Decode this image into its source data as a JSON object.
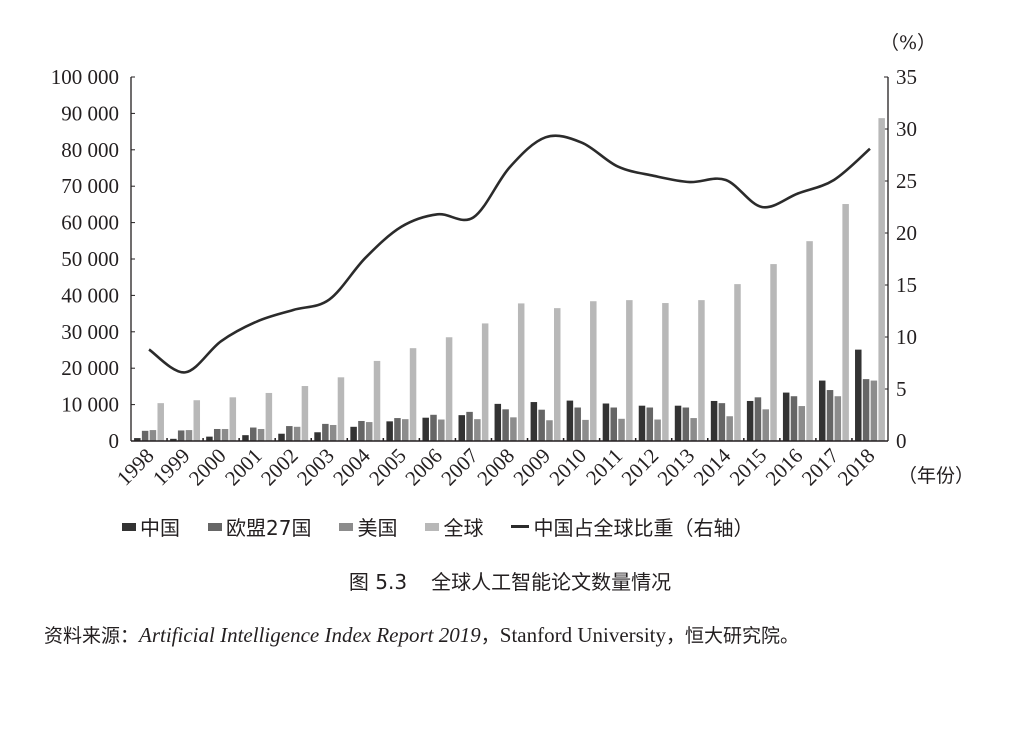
{
  "chart_data": {
    "type": "bar+line",
    "title": "图 5.3  全球人工智能论文数量情况",
    "categories": [
      "1998",
      "1999",
      "2000",
      "2001",
      "2002",
      "2003",
      "2004",
      "2005",
      "2006",
      "2007",
      "2008",
      "2009",
      "2010",
      "2011",
      "2012",
      "2013",
      "2014",
      "2015",
      "2016",
      "2017",
      "2018"
    ],
    "series": [
      {
        "name": "中国",
        "axis": "left",
        "type": "bar",
        "color": "#333333",
        "values": [
          800,
          600,
          1200,
          1600,
          2000,
          2400,
          3900,
          5400,
          6400,
          7100,
          10200,
          10700,
          11100,
          10300,
          9700,
          9700,
          11000,
          11000,
          13300,
          16600,
          25100
        ]
      },
      {
        "name": "欧盟27国",
        "axis": "left",
        "type": "bar",
        "color": "#666666",
        "values": [
          2800,
          2900,
          3300,
          3700,
          4100,
          4700,
          5500,
          6300,
          7200,
          8000,
          8700,
          8600,
          9200,
          9200,
          9200,
          9200,
          10400,
          12000,
          12300,
          14000,
          17000
        ]
      },
      {
        "name": "美国",
        "axis": "left",
        "type": "bar",
        "color": "#8c8c8c",
        "values": [
          3000,
          3000,
          3300,
          3300,
          3900,
          4400,
          5200,
          6000,
          5900,
          6000,
          6500,
          5700,
          5800,
          6100,
          5900,
          6300,
          6800,
          8700,
          9600,
          12300,
          16600
        ]
      },
      {
        "name": "全球",
        "axis": "left",
        "type": "bar",
        "color": "#b8b8b8",
        "values": [
          10400,
          11200,
          12000,
          13200,
          15100,
          17500,
          22000,
          25500,
          28500,
          32300,
          37800,
          36500,
          38400,
          38700,
          37900,
          38700,
          43100,
          48600,
          54900,
          65100,
          88700
        ]
      },
      {
        "name": "中国占全球比重（右轴）",
        "axis": "right",
        "type": "line",
        "color": "#2b2b2b",
        "values": [
          8.8,
          6.6,
          9.6,
          11.5,
          12.6,
          13.6,
          17.6,
          20.6,
          21.8,
          21.5,
          26.3,
          29.2,
          28.7,
          26.4,
          25.5,
          24.9,
          25.1,
          22.5,
          23.8,
          25.1,
          28.1
        ]
      }
    ],
    "left_axis": {
      "min": 0,
      "max": 100000,
      "ticks": [
        "0",
        "10 000",
        "20 000",
        "30 000",
        "40 000",
        "50 000",
        "60 000",
        "70 000",
        "80 000",
        "90 000",
        "100 000"
      ]
    },
    "right_axis": {
      "min": 0,
      "max": 35,
      "ticks": [
        "0",
        "5",
        "10",
        "15",
        "20",
        "25",
        "30",
        "35"
      ],
      "unit": "（%）"
    },
    "xlabel": "（年份）",
    "legend_position": "bottom",
    "grid": false
  },
  "legend": {
    "items": [
      {
        "label": "中国",
        "color": "#333333",
        "kind": "bar"
      },
      {
        "label": "欧盟27国",
        "color": "#666666",
        "kind": "bar"
      },
      {
        "label": "美国",
        "color": "#8c8c8c",
        "kind": "bar"
      },
      {
        "label": "全球",
        "color": "#b8b8b8",
        "kind": "bar"
      },
      {
        "label": "中国占全球比重（右轴）",
        "color": "#2b2b2b",
        "kind": "line"
      }
    ]
  },
  "caption": {
    "fig_num": "图 5.3",
    "title": "全球人工智能论文数量情况"
  },
  "source": {
    "prefix": "资料来源：",
    "italic": "Artificial Intelligence Index Report 2019",
    "sep1": "，",
    "roman": "Stanford University",
    "sep2": "，",
    "suffix": "恒大研究院。"
  }
}
